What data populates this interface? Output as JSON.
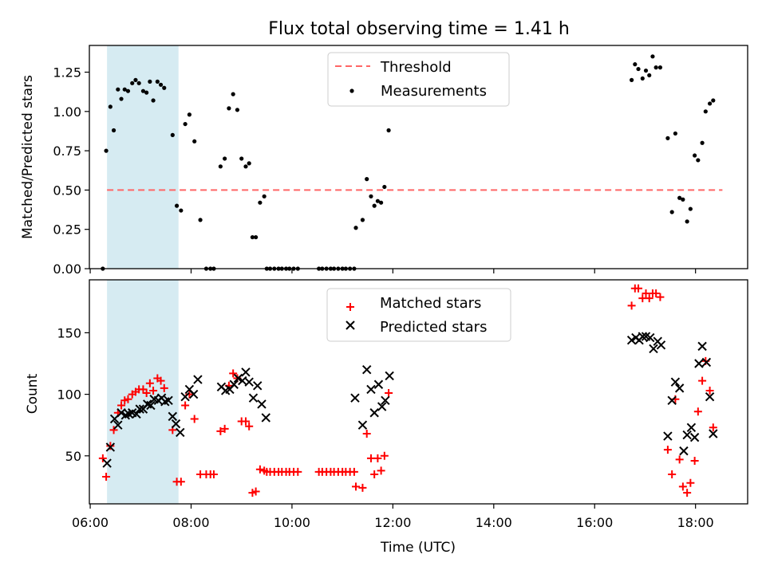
{
  "figure": {
    "title": "Flux total observing time = 1.41 h",
    "xlabel": "Time (UTC)",
    "x_ticks": [
      "06:00",
      "08:00",
      "10:00",
      "12:00",
      "14:00",
      "16:00",
      "18:00"
    ],
    "highlight_color": "#add8e6"
  },
  "chart_data": [
    {
      "type": "scatter",
      "ylabel": "Matched/Predicted stars",
      "ylim": [
        0,
        1.42
      ],
      "xlim": [
        "05:59",
        "19:02"
      ],
      "y_ticks": [
        "0.00",
        "0.25",
        "0.50",
        "0.75",
        "1.00",
        "1.25"
      ],
      "shaded_interval": [
        "06:20",
        "07:45"
      ],
      "legend": {
        "placement": "top-center",
        "entries": [
          "Threshold",
          "Measurements"
        ]
      },
      "threshold": {
        "name": "Threshold",
        "value": 0.5,
        "x_range": [
          "06:20",
          "18:32"
        ],
        "color": "#ff6666",
        "style": "dashed"
      },
      "series": [
        {
          "name": "Measurements",
          "marker": "dot",
          "color": "#000000",
          "points": [
            [
              "06:15",
              0.0
            ],
            [
              "06:19",
              0.75
            ],
            [
              "06:24",
              1.03
            ],
            [
              "06:28",
              0.88
            ],
            [
              "06:33",
              1.14
            ],
            [
              "06:37",
              1.08
            ],
            [
              "06:41",
              1.14
            ],
            [
              "06:45",
              1.13
            ],
            [
              "06:50",
              1.18
            ],
            [
              "06:54",
              1.2
            ],
            [
              "06:58",
              1.18
            ],
            [
              "07:03",
              1.13
            ],
            [
              "07:07",
              1.12
            ],
            [
              "07:11",
              1.19
            ],
            [
              "07:15",
              1.07
            ],
            [
              "07:20",
              1.19
            ],
            [
              "07:24",
              1.17
            ],
            [
              "07:28",
              1.15
            ],
            [
              "07:38",
              0.85
            ],
            [
              "07:43",
              0.4
            ],
            [
              "07:48",
              0.37
            ],
            [
              "07:53",
              0.92
            ],
            [
              "07:58",
              0.98
            ],
            [
              "08:04",
              0.81
            ],
            [
              "08:11",
              0.31
            ],
            [
              "08:18",
              0.0
            ],
            [
              "08:23",
              0.0
            ],
            [
              "08:27",
              0.0
            ],
            [
              "08:35",
              0.65
            ],
            [
              "08:40",
              0.7
            ],
            [
              "08:45",
              1.02
            ],
            [
              "08:50",
              1.11
            ],
            [
              "08:55",
              1.01
            ],
            [
              "09:00",
              0.7
            ],
            [
              "09:05",
              0.65
            ],
            [
              "09:09",
              0.67
            ],
            [
              "09:13",
              0.2
            ],
            [
              "09:17",
              0.2
            ],
            [
              "09:22",
              0.42
            ],
            [
              "09:27",
              0.46
            ],
            [
              "09:30",
              0.0
            ],
            [
              "09:34",
              0.0
            ],
            [
              "09:39",
              0.0
            ],
            [
              "09:44",
              0.0
            ],
            [
              "09:48",
              0.0
            ],
            [
              "09:53",
              0.0
            ],
            [
              "09:57",
              0.0
            ],
            [
              "10:02",
              0.0
            ],
            [
              "10:07",
              0.0
            ],
            [
              "10:32",
              0.0
            ],
            [
              "10:36",
              0.0
            ],
            [
              "10:41",
              0.0
            ],
            [
              "10:46",
              0.0
            ],
            [
              "10:50",
              0.0
            ],
            [
              "10:55",
              0.0
            ],
            [
              "11:00",
              0.0
            ],
            [
              "11:04",
              0.0
            ],
            [
              "11:09",
              0.0
            ],
            [
              "11:14",
              0.0
            ],
            [
              "11:16",
              0.26
            ],
            [
              "11:24",
              0.31
            ],
            [
              "11:29",
              0.57
            ],
            [
              "11:34",
              0.46
            ],
            [
              "11:38",
              0.4
            ],
            [
              "11:42",
              0.43
            ],
            [
              "11:46",
              0.42
            ],
            [
              "11:50",
              0.52
            ],
            [
              "11:55",
              0.88
            ],
            [
              "16:44",
              1.2
            ],
            [
              "16:48",
              1.3
            ],
            [
              "16:52",
              1.27
            ],
            [
              "16:57",
              1.21
            ],
            [
              "17:01",
              1.26
            ],
            [
              "17:05",
              1.23
            ],
            [
              "17:09",
              1.35
            ],
            [
              "17:13",
              1.28
            ],
            [
              "17:18",
              1.28
            ],
            [
              "17:27",
              0.83
            ],
            [
              "17:32",
              0.36
            ],
            [
              "17:36",
              0.86
            ],
            [
              "17:41",
              0.45
            ],
            [
              "17:45",
              0.44
            ],
            [
              "17:50",
              0.3
            ],
            [
              "17:54",
              0.38
            ],
            [
              "17:59",
              0.72
            ],
            [
              "18:03",
              0.69
            ],
            [
              "18:08",
              0.8
            ],
            [
              "18:12",
              1.0
            ],
            [
              "18:17",
              1.05
            ],
            [
              "18:21",
              1.07
            ]
          ]
        }
      ]
    },
    {
      "type": "scatter",
      "ylabel": "Count",
      "ylim": [
        11,
        193
      ],
      "xlim": [
        "05:59",
        "19:02"
      ],
      "y_ticks": [
        "50",
        "100",
        "150"
      ],
      "shaded_interval": [
        "06:20",
        "07:45"
      ],
      "legend": {
        "placement": "top-center",
        "entries": [
          "Matched stars",
          "Predicted stars"
        ]
      },
      "series": [
        {
          "name": "Matched stars",
          "marker": "plus",
          "color": "#ff0000",
          "points": [
            [
              "06:15",
              48
            ],
            [
              "06:19",
              33
            ],
            [
              "06:24",
              58
            ],
            [
              "06:28",
              71
            ],
            [
              "06:33",
              85
            ],
            [
              "06:37",
              91
            ],
            [
              "06:41",
              95
            ],
            [
              "06:45",
              96
            ],
            [
              "06:50",
              100
            ],
            [
              "06:54",
              102
            ],
            [
              "06:58",
              104
            ],
            [
              "07:03",
              104
            ],
            [
              "07:07",
              101
            ],
            [
              "07:11",
              109
            ],
            [
              "07:15",
              103
            ],
            [
              "07:20",
              113
            ],
            [
              "07:24",
              111
            ],
            [
              "07:28",
              105
            ],
            [
              "07:38",
              71
            ],
            [
              "07:43",
              29
            ],
            [
              "07:48",
              29
            ],
            [
              "07:53",
              91
            ],
            [
              "07:58",
              100
            ],
            [
              "08:04",
              80
            ],
            [
              "08:11",
              35
            ],
            [
              "08:18",
              35
            ],
            [
              "08:23",
              35
            ],
            [
              "08:27",
              35
            ],
            [
              "08:35",
              70
            ],
            [
              "08:40",
              72
            ],
            [
              "08:45",
              107
            ],
            [
              "08:50",
              117
            ],
            [
              "08:55",
              113
            ],
            [
              "09:00",
              78
            ],
            [
              "09:05",
              78
            ],
            [
              "09:09",
              74
            ],
            [
              "09:13",
              20
            ],
            [
              "09:17",
              21
            ],
            [
              "09:22",
              39
            ],
            [
              "09:27",
              38
            ],
            [
              "09:30",
              37
            ],
            [
              "09:34",
              37
            ],
            [
              "09:39",
              37
            ],
            [
              "09:44",
              37
            ],
            [
              "09:48",
              37
            ],
            [
              "09:53",
              37
            ],
            [
              "09:57",
              37
            ],
            [
              "10:02",
              37
            ],
            [
              "10:07",
              37
            ],
            [
              "10:32",
              37
            ],
            [
              "10:36",
              37
            ],
            [
              "10:41",
              37
            ],
            [
              "10:46",
              37
            ],
            [
              "10:50",
              37
            ],
            [
              "10:55",
              37
            ],
            [
              "11:00",
              37
            ],
            [
              "11:04",
              37
            ],
            [
              "11:09",
              37
            ],
            [
              "11:14",
              37
            ],
            [
              "11:16",
              25
            ],
            [
              "11:24",
              24
            ],
            [
              "11:29",
              68
            ],
            [
              "11:34",
              48
            ],
            [
              "11:38",
              35
            ],
            [
              "11:42",
              48
            ],
            [
              "11:46",
              38
            ],
            [
              "11:50",
              50
            ],
            [
              "11:55",
              101
            ],
            [
              "16:44",
              172
            ],
            [
              "16:48",
              186
            ],
            [
              "16:52",
              186
            ],
            [
              "16:57",
              178
            ],
            [
              "17:01",
              182
            ],
            [
              "17:05",
              178
            ],
            [
              "17:09",
              182
            ],
            [
              "17:13",
              182
            ],
            [
              "17:18",
              179
            ],
            [
              "17:27",
              55
            ],
            [
              "17:32",
              35
            ],
            [
              "17:36",
              96
            ],
            [
              "17:41",
              47
            ],
            [
              "17:45",
              25
            ],
            [
              "17:50",
              20
            ],
            [
              "17:54",
              28
            ],
            [
              "17:59",
              46
            ],
            [
              "18:03",
              86
            ],
            [
              "18:08",
              111
            ],
            [
              "18:12",
              127
            ],
            [
              "18:17",
              103
            ],
            [
              "18:21",
              73
            ]
          ]
        },
        {
          "name": "Predicted stars",
          "marker": "x",
          "color": "#000000",
          "points": [
            [
              "06:20",
              44
            ],
            [
              "06:24",
              57
            ],
            [
              "06:29",
              80
            ],
            [
              "06:33",
              75
            ],
            [
              "06:37",
              85
            ],
            [
              "06:42",
              83
            ],
            [
              "06:46",
              84
            ],
            [
              "06:50",
              85
            ],
            [
              "06:55",
              84
            ],
            [
              "06:59",
              88
            ],
            [
              "07:03",
              88
            ],
            [
              "07:08",
              92
            ],
            [
              "07:12",
              91
            ],
            [
              "07:16",
              96
            ],
            [
              "07:21",
              95
            ],
            [
              "07:25",
              97
            ],
            [
              "07:29",
              94
            ],
            [
              "07:33",
              95
            ],
            [
              "07:38",
              82
            ],
            [
              "07:42",
              76
            ],
            [
              "07:47",
              69
            ],
            [
              "07:53",
              98
            ],
            [
              "07:58",
              104
            ],
            [
              "08:03",
              100
            ],
            [
              "08:08",
              112
            ],
            [
              "08:36",
              106
            ],
            [
              "08:41",
              103
            ],
            [
              "08:46",
              104
            ],
            [
              "08:51",
              108
            ],
            [
              "08:56",
              113
            ],
            [
              "09:01",
              111
            ],
            [
              "09:05",
              118
            ],
            [
              "09:09",
              110
            ],
            [
              "09:14",
              97
            ],
            [
              "09:19",
              107
            ],
            [
              "09:24",
              92
            ],
            [
              "09:29",
              81
            ],
            [
              "11:15",
              97
            ],
            [
              "11:24",
              75
            ],
            [
              "11:29",
              120
            ],
            [
              "11:34",
              104
            ],
            [
              "11:38",
              85
            ],
            [
              "11:43",
              108
            ],
            [
              "11:47",
              90
            ],
            [
              "11:51",
              95
            ],
            [
              "11:56",
              115
            ],
            [
              "16:44",
              144
            ],
            [
              "16:49",
              146
            ],
            [
              "16:53",
              144
            ],
            [
              "16:57",
              147
            ],
            [
              "17:01",
              147
            ],
            [
              "17:06",
              146
            ],
            [
              "17:10",
              137
            ],
            [
              "17:15",
              143
            ],
            [
              "17:19",
              140
            ],
            [
              "17:27",
              66
            ],
            [
              "17:32",
              95
            ],
            [
              "17:36",
              110
            ],
            [
              "17:41",
              105
            ],
            [
              "17:46",
              54
            ],
            [
              "17:50",
              67
            ],
            [
              "17:55",
              73
            ],
            [
              "17:59",
              65
            ],
            [
              "18:04",
              125
            ],
            [
              "18:08",
              139
            ],
            [
              "18:13",
              126
            ],
            [
              "18:17",
              98
            ],
            [
              "18:21",
              68
            ]
          ]
        }
      ]
    }
  ]
}
